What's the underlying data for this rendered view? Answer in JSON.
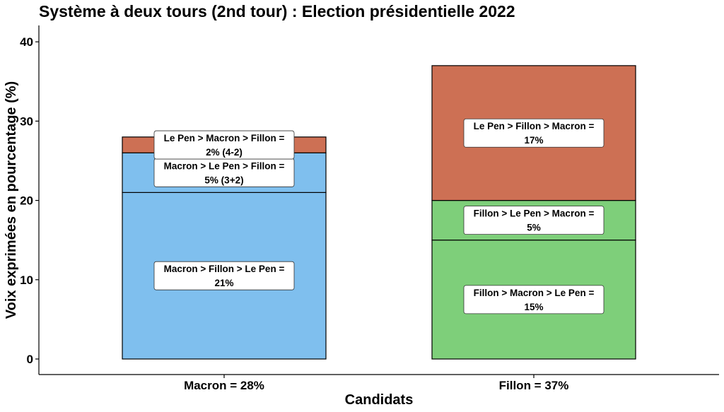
{
  "chart_data": {
    "type": "bar",
    "stacked": true,
    "title": "Système à deux tours (2nd tour) : Election présidentielle 2022",
    "xlabel": "Candidats",
    "ylabel": "Voix exprimées en pourcentage (%)",
    "ylim": [
      0,
      42
    ],
    "yticks": [
      0,
      10,
      20,
      30,
      40
    ],
    "grid": false,
    "categories": [
      "Macron = 28%",
      "Fillon = 37%"
    ],
    "bars": [
      {
        "category": "Macron = 28%",
        "segments": [
          {
            "value": 21,
            "color": "#7fbfee",
            "label": [
              "Macron > Fillon > Le Pen =",
              "21%"
            ]
          },
          {
            "value": 5,
            "color": "#7fbfee",
            "label": [
              "Macron > Le Pen > Fillon =",
              "5% (3+2)"
            ]
          },
          {
            "value": 2,
            "color": "#cd7054",
            "label": [
              "Le Pen > Macron > Fillon =",
              "2% (4-2)"
            ]
          }
        ]
      },
      {
        "category": "Fillon = 37%",
        "segments": [
          {
            "value": 15,
            "color": "#7ecf7a",
            "label": [
              "Fillon > Macron > Le Pen =",
              "15%"
            ]
          },
          {
            "value": 5,
            "color": "#7ecf7a",
            "label": [
              "Fillon > Le Pen > Macron =",
              "5%"
            ]
          },
          {
            "value": 17,
            "color": "#cd7054",
            "label": [
              "Le Pen > Fillon > Macron =",
              "17%"
            ]
          }
        ]
      }
    ]
  }
}
